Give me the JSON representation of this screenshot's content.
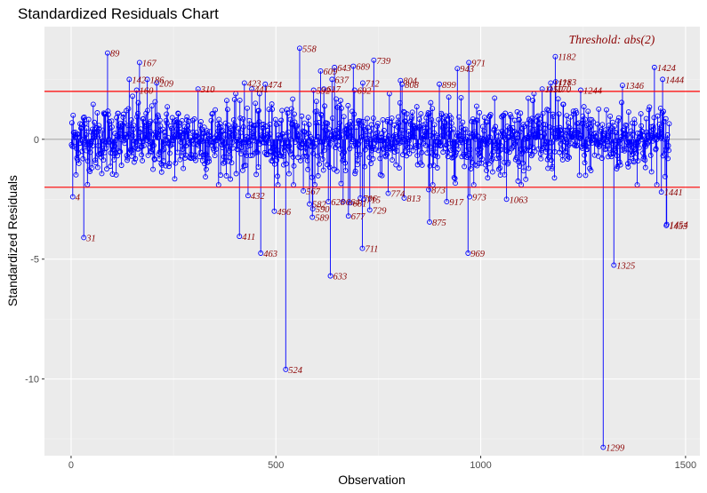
{
  "chart_data": {
    "type": "scatter",
    "title": "Standardized Residuals Chart",
    "xlabel": "Observation",
    "ylabel": "Standardized Residuals",
    "xlim": [
      -65,
      1535
    ],
    "ylim": [
      -13.2,
      4.7
    ],
    "x_ticks": [
      0,
      500,
      1000,
      1500
    ],
    "x_tick_labels": [
      "0",
      "500",
      "1000",
      "1500"
    ],
    "y_ticks": [
      0,
      -5,
      -10
    ],
    "y_tick_labels": [
      "0",
      "-5",
      "-10"
    ],
    "threshold": 2,
    "threshold_label": "Threshold: abs(2)",
    "n_observations": 1460,
    "grid": true,
    "colors": {
      "panel": "#ebebeb",
      "grid_major": "#ffffff",
      "grid_minor": "#f5f5f5",
      "points": "#0000ff",
      "threshold_line": "#ff0000",
      "zero_line": "#a6a6a6",
      "annotation": "#8b0000"
    },
    "outliers": [
      {
        "x": 4,
        "y": -2.4,
        "label": "4"
      },
      {
        "x": 31,
        "y": -4.1,
        "label": "31"
      },
      {
        "x": 89,
        "y": 3.6,
        "label": "89"
      },
      {
        "x": 142,
        "y": 2.5,
        "label": "142"
      },
      {
        "x": 160,
        "y": 2.05,
        "label": "160"
      },
      {
        "x": 167,
        "y": 3.2,
        "label": "167"
      },
      {
        "x": 186,
        "y": 2.5,
        "label": "186"
      },
      {
        "x": 209,
        "y": 2.35,
        "label": "209"
      },
      {
        "x": 310,
        "y": 2.1,
        "label": "310"
      },
      {
        "x": 411,
        "y": -4.05,
        "label": "411"
      },
      {
        "x": 423,
        "y": 2.35,
        "label": "423"
      },
      {
        "x": 432,
        "y": -2.35,
        "label": "432"
      },
      {
        "x": 441,
        "y": 2.1,
        "label": "441"
      },
      {
        "x": 463,
        "y": -4.75,
        "label": "463"
      },
      {
        "x": 474,
        "y": 2.3,
        "label": "474"
      },
      {
        "x": 496,
        "y": -3.0,
        "label": "496"
      },
      {
        "x": 524,
        "y": -9.6,
        "label": "524"
      },
      {
        "x": 558,
        "y": 3.8,
        "label": "558"
      },
      {
        "x": 567,
        "y": -2.15,
        "label": "567"
      },
      {
        "x": 582,
        "y": -2.7,
        "label": "582"
      },
      {
        "x": 589,
        "y": -3.25,
        "label": "589"
      },
      {
        "x": 590,
        "y": -2.9,
        "label": "590"
      },
      {
        "x": 592,
        "y": 2.05,
        "label": "592"
      },
      {
        "x": 609,
        "y": 2.85,
        "label": "609"
      },
      {
        "x": 617,
        "y": 2.1,
        "label": "617"
      },
      {
        "x": 628,
        "y": -2.6,
        "label": "628"
      },
      {
        "x": 633,
        "y": -5.7,
        "label": "633"
      },
      {
        "x": 637,
        "y": 2.5,
        "label": "637"
      },
      {
        "x": 643,
        "y": 3.0,
        "label": "643"
      },
      {
        "x": 664,
        "y": -2.6,
        "label": "664"
      },
      {
        "x": 677,
        "y": -3.2,
        "label": "677"
      },
      {
        "x": 681,
        "y": -2.65,
        "label": "681"
      },
      {
        "x": 689,
        "y": 3.05,
        "label": "689"
      },
      {
        "x": 692,
        "y": 2.05,
        "label": "692"
      },
      {
        "x": 706,
        "y": -2.45,
        "label": "706"
      },
      {
        "x": 711,
        "y": -4.55,
        "label": "711"
      },
      {
        "x": 712,
        "y": 2.35,
        "label": "712"
      },
      {
        "x": 715,
        "y": -2.5,
        "label": "715"
      },
      {
        "x": 729,
        "y": -2.95,
        "label": "729"
      },
      {
        "x": 739,
        "y": 3.3,
        "label": "739"
      },
      {
        "x": 774,
        "y": -2.25,
        "label": "774"
      },
      {
        "x": 804,
        "y": 2.45,
        "label": "804"
      },
      {
        "x": 808,
        "y": 2.3,
        "label": "808"
      },
      {
        "x": 813,
        "y": -2.45,
        "label": "813"
      },
      {
        "x": 873,
        "y": -2.1,
        "label": "873"
      },
      {
        "x": 875,
        "y": -3.45,
        "label": "875"
      },
      {
        "x": 899,
        "y": 2.3,
        "label": "899"
      },
      {
        "x": 917,
        "y": -2.6,
        "label": "917"
      },
      {
        "x": 943,
        "y": 2.95,
        "label": "943"
      },
      {
        "x": 969,
        "y": -4.75,
        "label": "969"
      },
      {
        "x": 971,
        "y": 3.2,
        "label": "971"
      },
      {
        "x": 973,
        "y": -2.4,
        "label": "973"
      },
      {
        "x": 1063,
        "y": -2.5,
        "label": "1063"
      },
      {
        "x": 1150,
        "y": 2.1,
        "label": "1150"
      },
      {
        "x": 1170,
        "y": 2.1,
        "label": "1170"
      },
      {
        "x": 1171,
        "y": 2.35,
        "label": "1171"
      },
      {
        "x": 1182,
        "y": 3.45,
        "label": "1182"
      },
      {
        "x": 1183,
        "y": 2.4,
        "label": "1183"
      },
      {
        "x": 1244,
        "y": 2.05,
        "label": "1244"
      },
      {
        "x": 1299,
        "y": -12.85,
        "label": "1299"
      },
      {
        "x": 1325,
        "y": -5.25,
        "label": "1325"
      },
      {
        "x": 1346,
        "y": 2.25,
        "label": "1346"
      },
      {
        "x": 1424,
        "y": 3.0,
        "label": "1424"
      },
      {
        "x": 1441,
        "y": -2.2,
        "label": "1441"
      },
      {
        "x": 1444,
        "y": 2.5,
        "label": "1444"
      },
      {
        "x": 1453,
        "y": -3.6,
        "label": "1453"
      },
      {
        "x": 1454,
        "y": -3.55,
        "label": "1454"
      }
    ]
  }
}
